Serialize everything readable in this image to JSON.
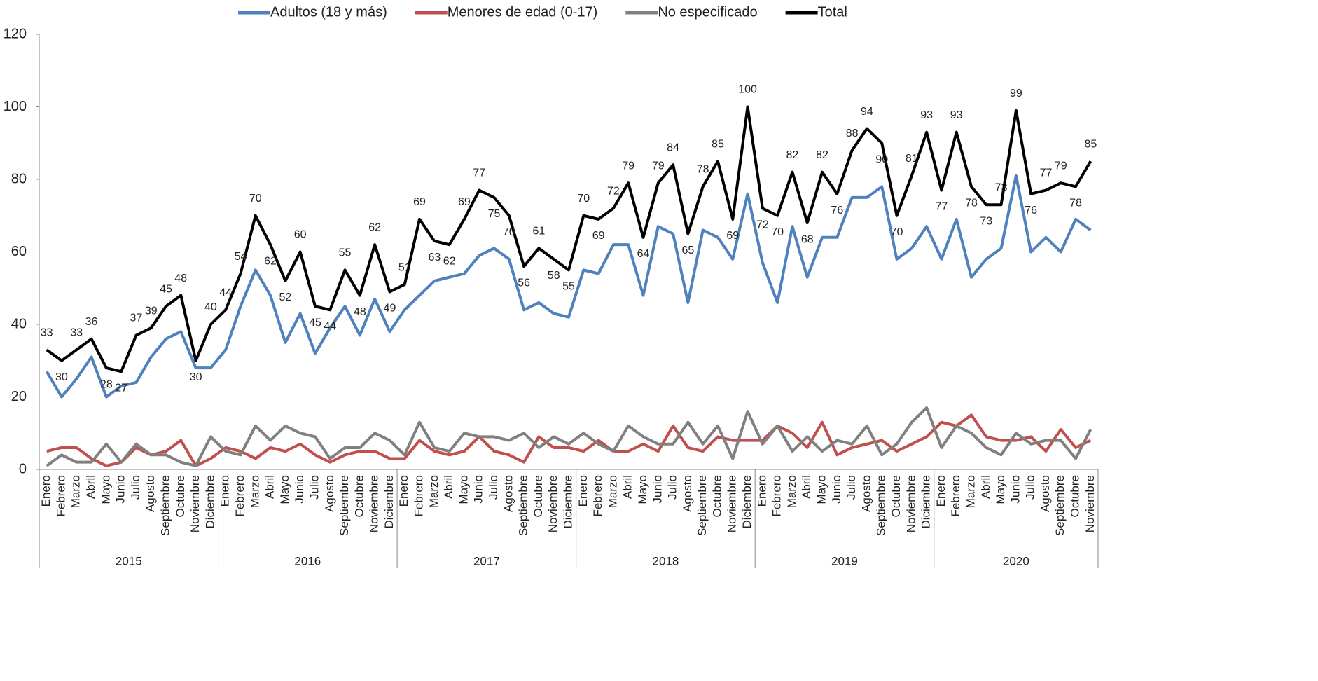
{
  "chart_data": {
    "type": "line",
    "category_groups": [
      {
        "label": "2015",
        "categories": [
          "Enero",
          "Febrero",
          "Marzo",
          "Abril",
          "Mayo",
          "Junio",
          "Julio",
          "Agosto",
          "Septiembre",
          "Octubre",
          "Noviembre",
          "Diciembre"
        ]
      },
      {
        "label": "2016",
        "categories": [
          "Enero",
          "Febrero",
          "Marzo",
          "Abril",
          "Mayo",
          "Junio",
          "Julio",
          "Agosto",
          "Septiembre",
          "Octubre",
          "Noviembre",
          "Diciembre"
        ]
      },
      {
        "label": "2017",
        "categories": [
          "Enero",
          "Febrero",
          "Marzo",
          "Abril",
          "Mayo",
          "Junio",
          "Julio",
          "Agosto",
          "Septiembre",
          "Octubre",
          "Noviembre",
          "Diciembre"
        ]
      },
      {
        "label": "2018",
        "categories": [
          "Enero",
          "Febrero",
          "Marzo",
          "Abril",
          "Mayo",
          "Junio",
          "Julio",
          "Agosto",
          "Septiembre",
          "Octubre",
          "Noviembre",
          "Diciembre"
        ]
      },
      {
        "label": "2019",
        "categories": [
          "Enero",
          "Febrero",
          "Marzo",
          "Abril",
          "Mayo",
          "Junio",
          "Julio",
          "Agosto",
          "Septiembre",
          "Octubre",
          "Noviembre",
          "Diciembre"
        ]
      },
      {
        "label": "2020",
        "categories": [
          "Enero",
          "Febrero",
          "Marzo",
          "Abril",
          "Mayo",
          "Junio",
          "Julio",
          "Agosto",
          "Septiembre",
          "Octubre",
          "Noviembre"
        ]
      }
    ],
    "series": [
      {
        "name": "Adultos (18 y más)",
        "color": "#4f81bd",
        "values": [
          27,
          20,
          25,
          31,
          20,
          23,
          24,
          31,
          36,
          38,
          28,
          28,
          33,
          45,
          55,
          48,
          35,
          43,
          32,
          39,
          45,
          37,
          47,
          38,
          44,
          48,
          52,
          53,
          54,
          59,
          61,
          58,
          44,
          46,
          43,
          42,
          55,
          54,
          62,
          62,
          48,
          67,
          65,
          46,
          66,
          64,
          58,
          76,
          57,
          46,
          67,
          53,
          64,
          64,
          75,
          75,
          78,
          58,
          61,
          67,
          58,
          69,
          53,
          58,
          61,
          81,
          60,
          64,
          60,
          69,
          66
        ]
      },
      {
        "name": "Menores de edad (0-17)",
        "color": "#c0504d",
        "values": [
          5,
          6,
          6,
          3,
          1,
          2,
          6,
          4,
          5,
          8,
          1,
          3,
          6,
          5,
          3,
          6,
          5,
          7,
          4,
          2,
          4,
          5,
          5,
          3,
          3,
          8,
          5,
          4,
          5,
          9,
          5,
          4,
          2,
          9,
          6,
          6,
          5,
          8,
          5,
          5,
          7,
          5,
          12,
          6,
          5,
          9,
          8,
          8,
          8,
          12,
          10,
          6,
          13,
          4,
          6,
          7,
          8,
          5,
          7,
          9,
          13,
          12,
          15,
          9,
          8,
          8,
          9,
          5,
          11,
          6,
          8
        ]
      },
      {
        "name": "No especificado",
        "color": "#808080",
        "values": [
          1,
          4,
          2,
          2,
          7,
          2,
          7,
          4,
          4,
          2,
          1,
          9,
          5,
          4,
          12,
          8,
          12,
          10,
          9,
          3,
          6,
          6,
          10,
          8,
          4,
          13,
          6,
          5,
          10,
          9,
          9,
          8,
          10,
          6,
          9,
          7,
          10,
          7,
          5,
          12,
          9,
          7,
          7,
          13,
          7,
          12,
          3,
          16,
          7,
          12,
          5,
          9,
          5,
          8,
          7,
          12,
          4,
          7,
          13,
          17,
          6,
          12,
          10,
          6,
          4,
          10,
          7,
          8,
          8,
          3,
          11
        ]
      },
      {
        "name": "Total",
        "color": "#000000",
        "data_labels": true,
        "values": [
          33,
          30,
          33,
          36,
          28,
          27,
          37,
          39,
          45,
          48,
          30,
          40,
          44,
          54,
          70,
          62,
          52,
          60,
          45,
          44,
          55,
          48,
          62,
          49,
          51,
          69,
          63,
          62,
          69,
          77,
          75,
          70,
          56,
          61,
          58,
          55,
          70,
          69,
          72,
          79,
          64,
          79,
          84,
          65,
          78,
          85,
          69,
          100,
          72,
          70,
          82,
          68,
          82,
          76,
          88,
          94,
          90,
          70,
          81,
          93,
          77,
          93,
          78,
          73,
          73,
          99,
          76,
          77,
          79,
          78,
          85
        ]
      }
    ],
    "ylim": [
      0,
      120
    ],
    "yticks": [
      0,
      20,
      40,
      60,
      80,
      100,
      120
    ],
    "grid": false,
    "legend": "top"
  }
}
